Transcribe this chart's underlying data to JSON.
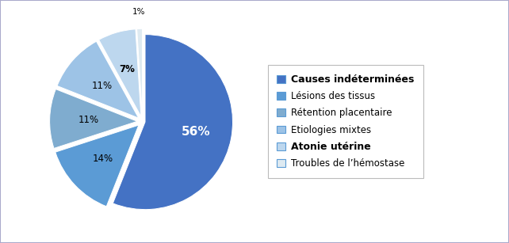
{
  "labels": [
    "Causes indéterminées",
    "Lésions des tissus",
    "Rétention placentaire",
    "Etiologies mixtes",
    "Atonie utérine",
    "Troubles de l’hémostase"
  ],
  "values": [
    56,
    14,
    11,
    11,
    7,
    1
  ],
  "colors": [
    "#4472C4",
    "#5B9BD5",
    "#7FACCF",
    "#9DC3E6",
    "#BDD7EE",
    "#DEEAF1"
  ],
  "explode": [
    0.03,
    0.06,
    0.06,
    0.06,
    0.06,
    0.06
  ],
  "legend_bold": [
    true,
    false,
    false,
    false,
    true,
    false
  ],
  "startangle": 90,
  "figure_width": 6.42,
  "figure_height": 3.07,
  "background_color": "#FFFFFF",
  "text_color_dark": "#000000",
  "text_color_light": "#FFFFFF"
}
